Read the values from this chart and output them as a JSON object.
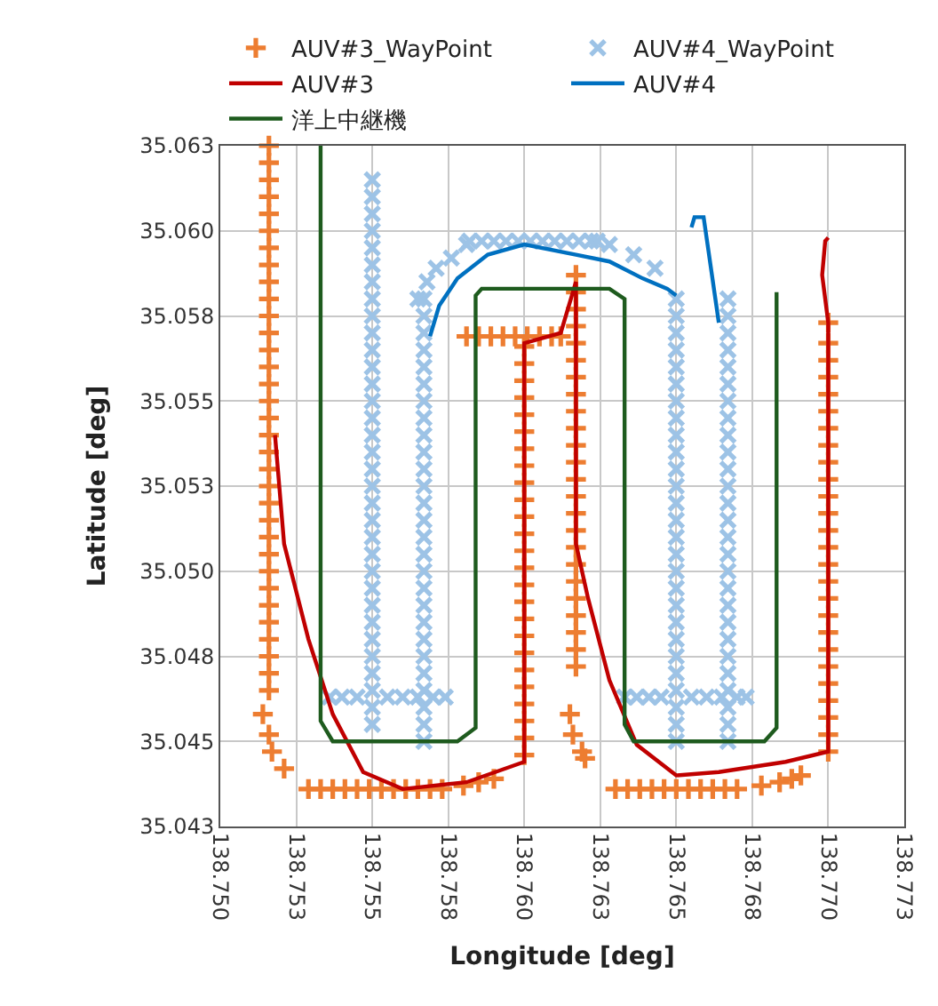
{
  "chart_data": {
    "type": "scatter",
    "xlabel": "Longitude [deg]",
    "ylabel": "Latitude [deg]",
    "xlim": [
      138.75,
      138.7725
    ],
    "ylim": [
      35.0425,
      35.0625
    ],
    "xticks": [
      {
        "value": 138.75,
        "label": "138.750"
      },
      {
        "value": 138.7525,
        "label": "138.753"
      },
      {
        "value": 138.755,
        "label": "138.755"
      },
      {
        "value": 138.7575,
        "label": "138.758"
      },
      {
        "value": 138.76,
        "label": "138.760"
      },
      {
        "value": 138.7625,
        "label": "138.763"
      },
      {
        "value": 138.765,
        "label": "138.765"
      },
      {
        "value": 138.7675,
        "label": "138.768"
      },
      {
        "value": 138.77,
        "label": "138.770"
      },
      {
        "value": 138.7725,
        "label": "138.773"
      }
    ],
    "yticks": [
      {
        "value": 35.0425,
        "label": "35.043"
      },
      {
        "value": 35.045,
        "label": "35.045"
      },
      {
        "value": 35.0475,
        "label": "35.048"
      },
      {
        "value": 35.05,
        "label": "35.050"
      },
      {
        "value": 35.0525,
        "label": "35.053"
      },
      {
        "value": 35.055,
        "label": "35.055"
      },
      {
        "value": 35.0575,
        "label": "35.058"
      },
      {
        "value": 35.06,
        "label": "35.060"
      },
      {
        "value": 35.0625,
        "label": "35.063"
      }
    ],
    "grid": true,
    "legend": "top",
    "series": [
      {
        "name": "AUV#3_WayPoint",
        "marker": "cross",
        "color": "#ed7d31",
        "x": [
          138.7516,
          138.7516,
          138.7516,
          138.7516,
          138.7516,
          138.7516,
          138.7516,
          138.7516,
          138.7516,
          138.7516,
          138.7516,
          138.7516,
          138.7516,
          138.7516,
          138.7516,
          138.7516,
          138.7516,
          138.7516,
          138.7516,
          138.7516,
          138.7516,
          138.7516,
          138.7516,
          138.7516,
          138.7516,
          138.7516,
          138.7516,
          138.7516,
          138.7516,
          138.7516,
          138.7516,
          138.7516,
          138.7516,
          138.7514,
          138.7516,
          138.7517,
          138.7521,
          138.7529,
          138.7533,
          138.7537,
          138.7541,
          138.7545,
          138.7549,
          138.7553,
          138.7557,
          138.7561,
          138.7565,
          138.7569,
          138.7573,
          138.758,
          138.7585,
          138.759,
          138.76,
          138.76,
          138.76,
          138.76,
          138.76,
          138.76,
          138.76,
          138.76,
          138.76,
          138.76,
          138.76,
          138.76,
          138.76,
          138.76,
          138.76,
          138.76,
          138.76,
          138.76,
          138.76,
          138.76,
          138.76,
          138.76,
          138.76,
          138.76,
          138.76,
          138.7581,
          138.7585,
          138.7589,
          138.7593,
          138.7597,
          138.7601,
          138.7605,
          138.7609,
          138.7612,
          138.7617,
          138.7617,
          138.7617,
          138.7617,
          138.7617,
          138.7617,
          138.7617,
          138.7617,
          138.7617,
          138.7617,
          138.7617,
          138.7617,
          138.7617,
          138.7617,
          138.7617,
          138.7617,
          138.7617,
          138.7617,
          138.7617,
          138.7617,
          138.7617,
          138.7617,
          138.7617,
          138.7617,
          138.7615,
          138.7616,
          138.7619,
          138.762,
          138.763,
          138.7634,
          138.7638,
          138.7642,
          138.7646,
          138.765,
          138.7654,
          138.7658,
          138.7662,
          138.7666,
          138.767,
          138.7678,
          138.7684,
          138.7688,
          138.7691,
          138.77,
          138.77,
          138.77,
          138.77,
          138.77,
          138.77,
          138.77,
          138.77,
          138.77,
          138.77,
          138.77,
          138.77,
          138.77,
          138.77,
          138.77,
          138.77,
          138.77,
          138.77,
          138.77,
          138.77,
          138.77,
          138.77,
          138.77,
          138.77,
          138.77,
          138.77
        ],
        "values": [
          35.0625,
          35.062,
          35.0615,
          35.061,
          35.0605,
          35.06,
          35.0595,
          35.059,
          35.0585,
          35.058,
          35.0575,
          35.057,
          35.0565,
          35.056,
          35.0555,
          35.055,
          35.0545,
          35.054,
          35.0535,
          35.053,
          35.0525,
          35.052,
          35.0515,
          35.051,
          35.0505,
          35.05,
          35.0495,
          35.049,
          35.0485,
          35.048,
          35.0475,
          35.047,
          35.0465,
          35.0458,
          35.0452,
          35.0447,
          35.0442,
          35.0436,
          35.0436,
          35.0436,
          35.0436,
          35.0436,
          35.0436,
          35.0436,
          35.0436,
          35.0436,
          35.0436,
          35.0436,
          35.0436,
          35.0437,
          35.0438,
          35.0439,
          35.0446,
          35.0451,
          35.0456,
          35.0461,
          35.0466,
          35.0471,
          35.0476,
          35.0481,
          35.0486,
          35.0491,
          35.0496,
          35.0501,
          35.0506,
          35.0511,
          35.0516,
          35.0521,
          35.0526,
          35.0531,
          35.0536,
          35.0541,
          35.0546,
          35.0551,
          35.0556,
          35.0561,
          35.0566,
          35.0569,
          35.0569,
          35.0569,
          35.0569,
          35.0569,
          35.0569,
          35.0569,
          35.0569,
          35.0569,
          35.0587,
          35.0582,
          35.0577,
          35.0572,
          35.0567,
          35.0562,
          35.0557,
          35.0552,
          35.0547,
          35.0542,
          35.0537,
          35.0532,
          35.0527,
          35.0522,
          35.0517,
          35.0512,
          35.0507,
          35.0502,
          35.0497,
          35.0492,
          35.0487,
          35.0482,
          35.0477,
          35.0472,
          35.0458,
          35.0452,
          35.0447,
          35.0445,
          35.0436,
          35.0436,
          35.0436,
          35.0436,
          35.0436,
          35.0436,
          35.0436,
          35.0436,
          35.0436,
          35.0436,
          35.0436,
          35.0437,
          35.0438,
          35.0439,
          35.044,
          35.0447,
          35.0452,
          35.0457,
          35.0462,
          35.0467,
          35.0472,
          35.0477,
          35.0482,
          35.0487,
          35.0492,
          35.0497,
          35.0502,
          35.0507,
          35.0512,
          35.0517,
          35.0522,
          35.0527,
          35.0532,
          35.0537,
          35.0542,
          35.0547,
          35.0552,
          35.0557,
          35.0562,
          35.0567,
          35.0573
        ]
      },
      {
        "name": "AUV#4_WayPoint",
        "marker": "x",
        "color": "#9dc3e6",
        "x": [
          138.755,
          138.755,
          138.755,
          138.755,
          138.755,
          138.755,
          138.755,
          138.755,
          138.755,
          138.755,
          138.755,
          138.755,
          138.755,
          138.755,
          138.755,
          138.755,
          138.755,
          138.755,
          138.755,
          138.755,
          138.755,
          138.755,
          138.755,
          138.755,
          138.755,
          138.755,
          138.755,
          138.755,
          138.755,
          138.755,
          138.755,
          138.755,
          138.755,
          138.7536,
          138.754,
          138.7545,
          138.7555,
          138.756,
          138.7565,
          138.757,
          138.7574,
          138.7567,
          138.7567,
          138.7567,
          138.7567,
          138.7567,
          138.7567,
          138.7567,
          138.7567,
          138.7567,
          138.7567,
          138.7567,
          138.7567,
          138.7567,
          138.7567,
          138.7567,
          138.7567,
          138.7567,
          138.7567,
          138.7567,
          138.7567,
          138.7567,
          138.7567,
          138.7567,
          138.7567,
          138.7567,
          138.7567,
          138.7567,
          138.7565,
          138.7568,
          138.7571,
          138.7576,
          138.7581,
          138.7582,
          138.7586,
          138.759,
          138.7594,
          138.7598,
          138.7602,
          138.7606,
          138.761,
          138.7614,
          138.7618,
          138.7622,
          138.7624,
          138.7628,
          138.7636,
          138.7643,
          138.765,
          138.765,
          138.765,
          138.765,
          138.765,
          138.765,
          138.765,
          138.765,
          138.765,
          138.765,
          138.765,
          138.765,
          138.765,
          138.765,
          138.765,
          138.765,
          138.765,
          138.765,
          138.765,
          138.765,
          138.765,
          138.765,
          138.765,
          138.765,
          138.765,
          138.765,
          138.765,
          138.7633,
          138.7637,
          138.7641,
          138.7645,
          138.7655,
          138.766,
          138.7665,
          138.767,
          138.7673,
          138.7667,
          138.7667,
          138.7667,
          138.7667,
          138.7667,
          138.7667,
          138.7667,
          138.7667,
          138.7667,
          138.7667,
          138.7667,
          138.7667,
          138.7667,
          138.7667,
          138.7667,
          138.7667,
          138.7667,
          138.7667,
          138.7667,
          138.7667,
          138.7667,
          138.7667,
          138.7667,
          138.7667,
          138.7667,
          138.7667,
          138.7667
        ],
        "values": [
          35.0615,
          35.061,
          35.0605,
          35.06,
          35.0595,
          35.059,
          35.0585,
          35.058,
          35.0575,
          35.057,
          35.0565,
          35.056,
          35.0555,
          35.055,
          35.0545,
          35.054,
          35.0535,
          35.053,
          35.0525,
          35.052,
          35.0515,
          35.051,
          35.0505,
          35.05,
          35.0495,
          35.049,
          35.0485,
          35.048,
          35.0475,
          35.047,
          35.0465,
          35.046,
          35.0455,
          35.0463,
          35.0463,
          35.0463,
          35.0463,
          35.0463,
          35.0463,
          35.0463,
          35.0463,
          35.058,
          35.0575,
          35.057,
          35.0565,
          35.056,
          35.0555,
          35.055,
          35.0545,
          35.054,
          35.0535,
          35.053,
          35.0525,
          35.052,
          35.0515,
          35.051,
          35.0505,
          35.05,
          35.0495,
          35.049,
          35.0485,
          35.048,
          35.0475,
          35.047,
          35.0465,
          35.046,
          35.0455,
          35.045,
          35.058,
          35.0585,
          35.0589,
          35.0592,
          35.0596,
          35.0597,
          35.0597,
          35.0597,
          35.0597,
          35.0597,
          35.0597,
          35.0597,
          35.0597,
          35.0597,
          35.0597,
          35.0597,
          35.0597,
          35.0596,
          35.0593,
          35.0589,
          35.058,
          35.0575,
          35.057,
          35.0565,
          35.056,
          35.0555,
          35.055,
          35.0545,
          35.054,
          35.0535,
          35.053,
          35.0525,
          35.052,
          35.0515,
          35.051,
          35.0505,
          35.05,
          35.0495,
          35.049,
          35.0485,
          35.048,
          35.0475,
          35.047,
          35.0465,
          35.046,
          35.0455,
          35.045,
          35.0463,
          35.0463,
          35.0463,
          35.0463,
          35.0463,
          35.0463,
          35.0463,
          35.0463,
          35.0463,
          35.058,
          35.0575,
          35.057,
          35.0565,
          35.056,
          35.0555,
          35.055,
          35.0545,
          35.054,
          35.0535,
          35.053,
          35.0525,
          35.052,
          35.0515,
          35.051,
          35.0505,
          35.05,
          35.0495,
          35.049,
          35.0485,
          35.048,
          35.0475,
          35.047,
          35.0465,
          35.046,
          35.0455,
          35.045
        ]
      },
      {
        "name": "AUV#3",
        "type": "line",
        "marker": "none",
        "color": "#c00000",
        "x": [
          138.7518,
          138.7521,
          138.7529,
          138.7537,
          138.7547,
          138.756,
          138.7581,
          138.76,
          138.76,
          138.7612,
          138.7617,
          138.7617,
          138.7621,
          138.7628,
          138.7637,
          138.765,
          138.7664,
          138.7686,
          138.77,
          138.77,
          138.7698,
          138.7699,
          138.77
        ],
        "values": [
          35.054,
          35.0508,
          35.048,
          35.0458,
          35.0441,
          35.0436,
          35.0438,
          35.0444,
          35.0567,
          35.057,
          35.0585,
          35.0508,
          35.0492,
          35.0468,
          35.0449,
          35.044,
          35.0441,
          35.0444,
          35.0447,
          35.0573,
          35.0587,
          35.0597,
          35.0598
        ]
      },
      {
        "name": "AUV#4",
        "type": "line",
        "marker": "none",
        "color": "#0070c0",
        "x": [
          138.7569,
          138.7572,
          138.7578,
          138.7588,
          138.76,
          138.7617,
          138.7628,
          138.7639,
          138.7647,
          138.765,
          null,
          138.7655,
          138.7656,
          138.7659,
          138.7664
        ],
        "values": [
          35.0569,
          35.0578,
          35.0586,
          35.0593,
          35.0596,
          35.0593,
          35.0591,
          35.0586,
          35.0583,
          35.0581,
          null,
          35.0601,
          35.0604,
          35.0604,
          35.0573
        ]
      },
      {
        "name": "洋上中継機",
        "type": "line",
        "marker": "none",
        "color": "#1e5b1e",
        "x": [
          138.7533,
          138.7533,
          138.7537,
          138.7578,
          138.7584,
          138.7584,
          138.7586,
          138.7628,
          138.7633,
          138.7633,
          138.7636,
          138.7679,
          138.7683,
          138.7683
        ],
        "values": [
          35.0625,
          35.0456,
          35.045,
          35.045,
          35.0454,
          35.0581,
          35.0583,
          35.0583,
          35.058,
          35.0455,
          35.045,
          35.045,
          35.0454,
          35.0582
        ]
      }
    ]
  }
}
